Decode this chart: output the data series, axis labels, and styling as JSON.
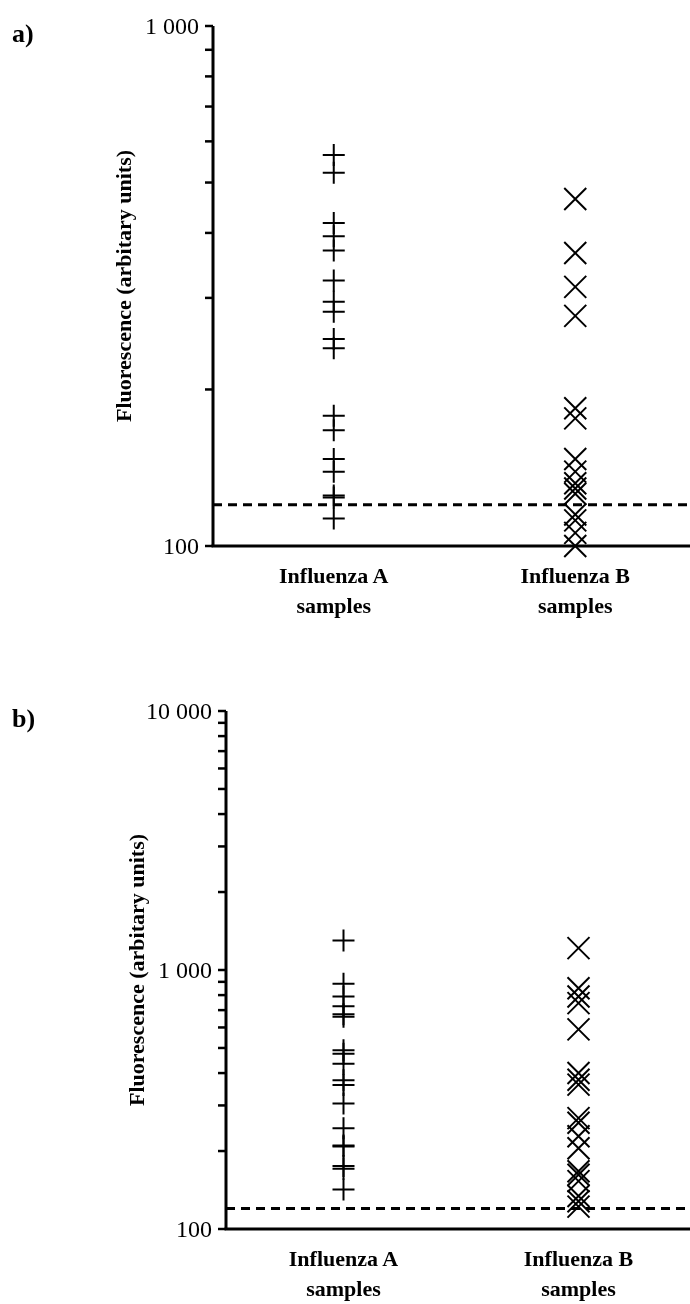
{
  "chart_data": [
    {
      "type": "scatter",
      "title": "a)",
      "ylabel": "Fluorescence (arbitary units)",
      "categories": [
        "Influenza A samples",
        "Influenza B samples"
      ],
      "log": "y",
      "ylim": [
        100,
        1000
      ],
      "yticks": [
        {
          "value": 100,
          "label": "100"
        },
        {
          "value": 200,
          "label": null
        },
        {
          "value": 300,
          "label": null
        },
        {
          "value": 400,
          "label": null
        },
        {
          "value": 500,
          "label": null
        },
        {
          "value": 600,
          "label": null
        },
        {
          "value": 700,
          "label": null
        },
        {
          "value": 800,
          "label": null
        },
        {
          "value": 900,
          "label": null
        },
        {
          "value": 1000,
          "label": "1 000"
        }
      ],
      "grid": false,
      "series": [
        {
          "color": "#000000",
          "marker": "cross",
          "x": [
            "Influenza A samples",
            "Influenza A samples",
            "Influenza A samples",
            "Influenza A samples",
            "Influenza A samples",
            "Influenza A samples",
            "Influenza A samples",
            "Influenza A samples",
            "Influenza A samples",
            "Influenza A samples",
            "Influenza A samples",
            "Influenza A samples",
            "Influenza A samples",
            "Influenza A samples",
            "Influenza A samples",
            "Influenza A samples",
            "Influenza A samples"
          ],
          "values": [
            565,
            522,
            418,
            394,
            370,
            324,
            295,
            282,
            250,
            240,
            178,
            167,
            147,
            139,
            125,
            124,
            113
          ]
        },
        {
          "color": "#000000",
          "marker": "cross",
          "x": [
            "Influenza B samples",
            "Influenza B samples",
            "Influenza B samples",
            "Influenza B samples",
            "Influenza B samples",
            "Influenza B samples",
            "Influenza B samples",
            "Influenza B samples",
            "Influenza B samples",
            "Influenza B samples",
            "Influenza B samples",
            "Influenza B samples",
            "Influenza B samples",
            "Influenza B samples",
            "Influenza B samples"
          ],
          "values": [
            465,
            366,
            315,
            277,
            184,
            176,
            147,
            139,
            132,
            129,
            126,
            115,
            112,
            106,
            100
          ]
        }
      ],
      "ref_lines": [
        {
          "axis": "y",
          "value": 120,
          "line_style": "dashed",
          "color": "#000000"
        }
      ]
    },
    {
      "type": "scatter",
      "title": "b)",
      "ylabel": "Fluorescence (arbitary units)",
      "categories": [
        "Influenza A samples",
        "Influenza B samples"
      ],
      "log": "y",
      "ylim": [
        100,
        10000
      ],
      "yticks": [
        {
          "value": 100,
          "label": "100"
        },
        {
          "value": 200,
          "label": null
        },
        {
          "value": 300,
          "label": null
        },
        {
          "value": 400,
          "label": null
        },
        {
          "value": 500,
          "label": null
        },
        {
          "value": 600,
          "label": null
        },
        {
          "value": 700,
          "label": null
        },
        {
          "value": 800,
          "label": null
        },
        {
          "value": 900,
          "label": null
        },
        {
          "value": 1000,
          "label": "1 000"
        },
        {
          "value": 2000,
          "label": null
        },
        {
          "value": 3000,
          "label": null
        },
        {
          "value": 4000,
          "label": null
        },
        {
          "value": 5000,
          "label": null
        },
        {
          "value": 6000,
          "label": null
        },
        {
          "value": 7000,
          "label": null
        },
        {
          "value": 8000,
          "label": null
        },
        {
          "value": 9000,
          "label": null
        },
        {
          "value": 10000,
          "label": "10 000"
        }
      ],
      "grid": false,
      "series": [
        {
          "color": "#000000",
          "marker": "cross",
          "x": [
            "Influenza A samples",
            "Influenza A samples",
            "Influenza A samples",
            "Influenza A samples",
            "Influenza A samples",
            "Influenza A samples",
            "Influenza A samples",
            "Influenza A samples",
            "Influenza A samples",
            "Influenza A samples",
            "Influenza A samples",
            "Influenza A samples",
            "Influenza A samples",
            "Influenza A samples",
            "Influenza A samples",
            "Influenza A samples",
            "Influenza A samples",
            "Influenza A samples"
          ],
          "values": [
            1300,
            885,
            790,
            725,
            675,
            660,
            490,
            475,
            435,
            375,
            360,
            305,
            245,
            210,
            208,
            175,
            171,
            142
          ]
        },
        {
          "color": "#000000",
          "marker": "cross",
          "x": [
            "Influenza B samples",
            "Influenza B samples",
            "Influenza B samples",
            "Influenza B samples",
            "Influenza B samples",
            "Influenza B samples",
            "Influenza B samples",
            "Influenza B samples",
            "Influenza B samples",
            "Influenza B samples",
            "Influenza B samples",
            "Influenza B samples",
            "Influenza B samples",
            "Influenza B samples",
            "Influenza B samples",
            "Influenza B samples",
            "Influenza B samples",
            "Influenza B samples"
          ],
          "values": [
            1215,
            850,
            790,
            745,
            590,
            400,
            377,
            361,
            268,
            257,
            228,
            205,
            167,
            162,
            153,
            134,
            128,
            122
          ]
        }
      ],
      "ref_lines": [
        {
          "axis": "y",
          "value": 120,
          "line_style": "dashed",
          "color": "#000000"
        }
      ]
    }
  ]
}
